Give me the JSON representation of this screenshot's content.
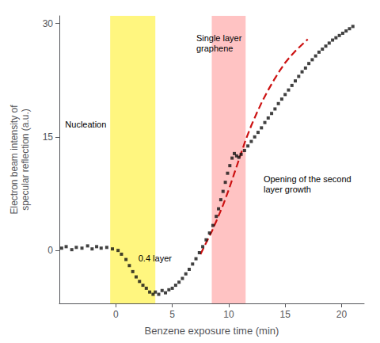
{
  "chart_data": {
    "type": "scatter",
    "xlabel": "Benzene exposure time (min)",
    "ylabel": "Electron beam intensity of\nspecular reflection (a.u.)",
    "xlim": [
      -5,
      22
    ],
    "ylim": [
      -7,
      31
    ],
    "xticks": [
      0,
      5,
      10,
      15,
      20
    ],
    "yticks": [
      0,
      15,
      30
    ],
    "grid": false,
    "series": [
      {
        "type": "scatter",
        "color": "#111111",
        "marker": "square",
        "x": [
          -4.8,
          -4.4,
          -3.9,
          -3.5,
          -3.0,
          -2.5,
          -2.1,
          -1.7,
          -1.3,
          -0.8,
          -0.3,
          0.2,
          0.5,
          0.9,
          1.2,
          1.5,
          1.8,
          2.1,
          2.4,
          2.7,
          3.0,
          3.3,
          3.5,
          3.8,
          4.1,
          4.4,
          4.7,
          5.0,
          5.3,
          5.6,
          5.9,
          6.2,
          6.5,
          6.8,
          7.1,
          7.4,
          7.7,
          8.0,
          8.3,
          8.6,
          8.9,
          9.1,
          9.3,
          9.5,
          9.7,
          9.9,
          10.1,
          10.3,
          10.5,
          10.7,
          10.9,
          11.1,
          11.4,
          11.7,
          12.0,
          12.3,
          12.6,
          12.9,
          13.2,
          13.5,
          13.8,
          14.1,
          14.4,
          14.7,
          15.0,
          15.3,
          15.6,
          15.9,
          16.2,
          16.5,
          16.8,
          17.1,
          17.4,
          17.7,
          18.0,
          18.3,
          18.6,
          18.9,
          19.2,
          19.5,
          19.8,
          20.1,
          20.4,
          20.7,
          21.0
        ],
        "values": [
          0.3,
          0.5,
          0.1,
          0.4,
          0.3,
          0.6,
          0.2,
          0.5,
          0.3,
          0.4,
          0.2,
          0.0,
          -0.5,
          -1.2,
          -2.0,
          -2.8,
          -3.5,
          -4.1,
          -4.6,
          -5.0,
          -5.5,
          -5.8,
          -5.5,
          -5.8,
          -5.3,
          -5.6,
          -5.2,
          -5.0,
          -4.6,
          -4.2,
          -3.7,
          -3.1,
          -2.5,
          -1.8,
          -1.1,
          -0.3,
          0.5,
          1.4,
          2.3,
          3.3,
          4.5,
          5.5,
          6.7,
          7.8,
          9.0,
          10.2,
          11.2,
          12.2,
          12.8,
          12.5,
          12.3,
          12.7,
          13.2,
          13.8,
          14.4,
          15.0,
          15.6,
          16.2,
          16.9,
          17.5,
          18.1,
          18.7,
          19.4,
          20.0,
          20.6,
          21.2,
          21.8,
          22.4,
          23.0,
          23.6,
          24.1,
          24.7,
          25.2,
          25.7,
          26.2,
          26.6,
          27.0,
          27.4,
          27.8,
          28.1,
          28.4,
          28.7,
          29.0,
          29.3,
          29.6
        ]
      },
      {
        "type": "line",
        "color": "#cc1111",
        "line_style": "dashed",
        "x": [
          7.5,
          8.0,
          8.5,
          9.0,
          9.5,
          10.0,
          10.5,
          11.0,
          11.5,
          12.0,
          12.5,
          13.0,
          13.5,
          14.0,
          14.5,
          15.0,
          15.5,
          16.0,
          16.5,
          17.0
        ],
        "values": [
          -0.5,
          1.0,
          2.5,
          4.2,
          6.0,
          8.0,
          10.2,
          12.4,
          14.6,
          16.5,
          18.2,
          19.8,
          21.2,
          22.5,
          23.7,
          24.8,
          25.7,
          26.5,
          27.2,
          27.9
        ]
      }
    ],
    "bands": [
      {
        "from": -0.5,
        "to": 3.5,
        "color": "#ffee00"
      },
      {
        "from": 8.5,
        "to": 11.5,
        "color": "#ff8888"
      }
    ],
    "annotations": [
      "Nucleation",
      "0.4 layer",
      "Single layer\ngraphene",
      "Opening of the second\nlayer growth"
    ]
  }
}
